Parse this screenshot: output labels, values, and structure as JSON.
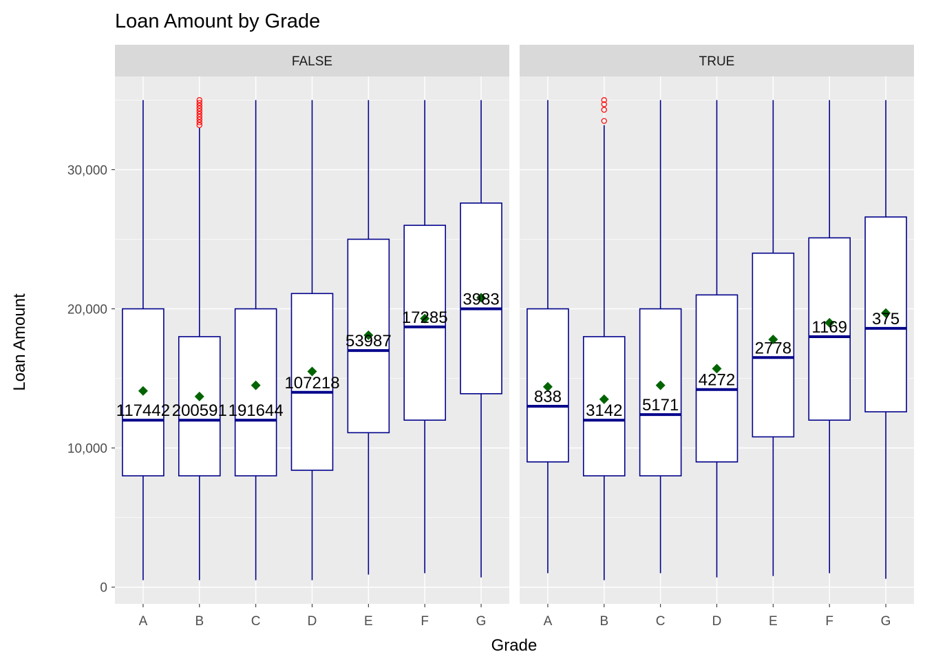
{
  "chart_data": {
    "type": "boxplot",
    "title": "Loan Amount by Grade",
    "xlabel": "Grade",
    "ylabel": "Loan Amount",
    "ylim": [
      -1200,
      36700
    ],
    "y_ticks": [
      0,
      10000,
      20000,
      30000
    ],
    "y_tick_labels": [
      "0",
      "10,000",
      "20,000",
      "30,000"
    ],
    "grid": true,
    "categories": [
      "A",
      "B",
      "C",
      "D",
      "E",
      "F",
      "G"
    ],
    "colors": {
      "box_line": "#00008b",
      "box_fill": "#ffffff",
      "mean_point": "#006400",
      "outlier": "#ff0000",
      "panel_bg": "#ebebeb",
      "strip_bg": "#d9d9d9"
    },
    "facets": [
      {
        "label": "FALSE",
        "boxes": [
          {
            "grade": "A",
            "min": 500,
            "q1": 8000,
            "median": 12000,
            "q3": 20000,
            "max": 35000,
            "mean": 14100,
            "count": "117442",
            "outliers": []
          },
          {
            "grade": "B",
            "min": 500,
            "q1": 8000,
            "median": 12000,
            "q3": 18000,
            "max": 33000,
            "mean": 13700,
            "count": "200591",
            "outliers": [
              33200,
              33400,
              33600,
              33800,
              34000,
              34200,
              34400,
              34600,
              34800,
              35000
            ]
          },
          {
            "grade": "C",
            "min": 500,
            "q1": 8000,
            "median": 12000,
            "q3": 20000,
            "max": 35000,
            "mean": 14500,
            "count": "191644",
            "outliers": []
          },
          {
            "grade": "D",
            "min": 500,
            "q1": 8400,
            "median": 14000,
            "q3": 21100,
            "max": 35000,
            "mean": 15500,
            "count": "107218",
            "outliers": []
          },
          {
            "grade": "E",
            "min": 900,
            "q1": 11100,
            "median": 17000,
            "q3": 25000,
            "max": 35000,
            "mean": 18100,
            "count": "53987",
            "outliers": []
          },
          {
            "grade": "F",
            "min": 1000,
            "q1": 12000,
            "median": 18700,
            "q3": 26000,
            "max": 35000,
            "mean": 19300,
            "count": "17285",
            "outliers": []
          },
          {
            "grade": "G",
            "min": 700,
            "q1": 13900,
            "median": 20000,
            "q3": 27600,
            "max": 35000,
            "mean": 20800,
            "count": "3983",
            "outliers": []
          }
        ]
      },
      {
        "label": "TRUE",
        "boxes": [
          {
            "grade": "A",
            "min": 1000,
            "q1": 9000,
            "median": 13000,
            "q3": 20000,
            "max": 35000,
            "mean": 14400,
            "count": "838",
            "outliers": []
          },
          {
            "grade": "B",
            "min": 500,
            "q1": 8000,
            "median": 12000,
            "q3": 18000,
            "max": 33200,
            "mean": 13500,
            "count": "3142",
            "outliers": [
              33500,
              34300,
              34700,
              35000
            ]
          },
          {
            "grade": "C",
            "min": 1000,
            "q1": 8000,
            "median": 12400,
            "q3": 20000,
            "max": 35000,
            "mean": 14500,
            "count": "5171",
            "outliers": []
          },
          {
            "grade": "D",
            "min": 700,
            "q1": 9000,
            "median": 14200,
            "q3": 21000,
            "max": 35000,
            "mean": 15700,
            "count": "4272",
            "outliers": []
          },
          {
            "grade": "E",
            "min": 800,
            "q1": 10800,
            "median": 16500,
            "q3": 24000,
            "max": 35000,
            "mean": 17800,
            "count": "2778",
            "outliers": []
          },
          {
            "grade": "F",
            "min": 1000,
            "q1": 12000,
            "median": 18000,
            "q3": 25100,
            "max": 35000,
            "mean": 19000,
            "count": "1169",
            "outliers": []
          },
          {
            "grade": "G",
            "min": 600,
            "q1": 12600,
            "median": 18600,
            "q3": 26600,
            "max": 35000,
            "mean": 19700,
            "count": "375",
            "outliers": []
          }
        ]
      }
    ]
  }
}
